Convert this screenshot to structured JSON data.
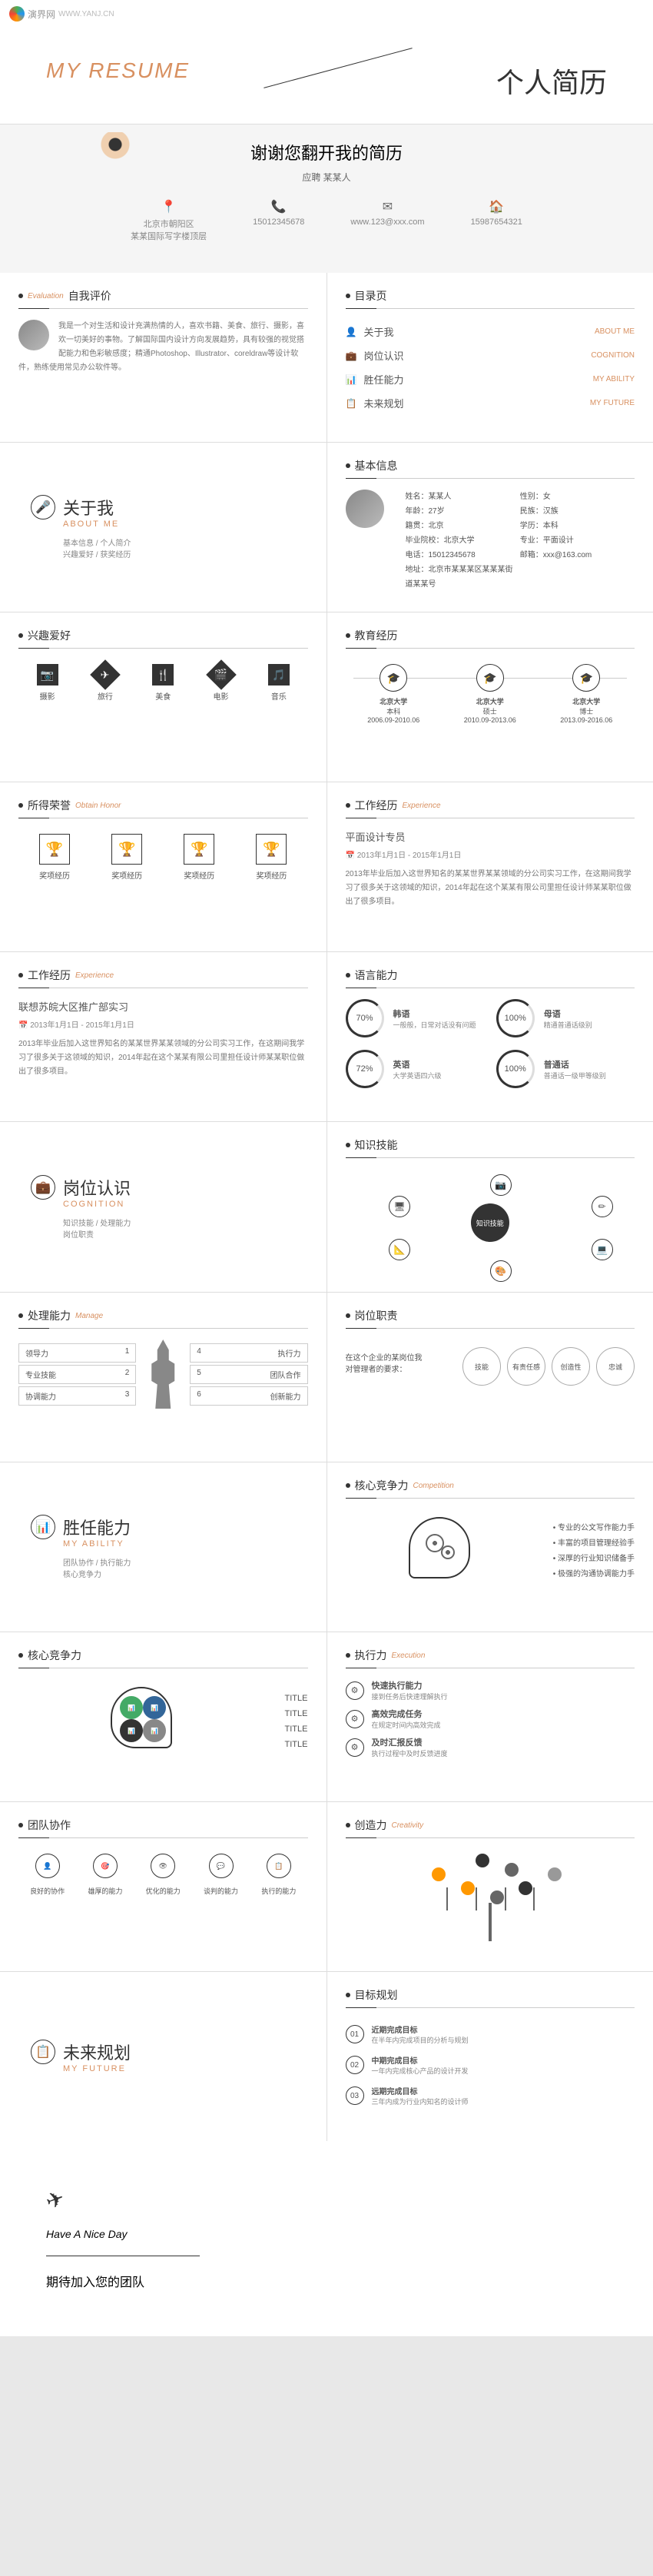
{
  "logo": "演界网",
  "hero": {
    "en": "MY RESUME",
    "cn": "个人简历"
  },
  "subhero": {
    "title": "谢谢您翻开我的简历",
    "sub": "应聘 某某人"
  },
  "contacts": [
    {
      "icon": "📍",
      "l1": "北京市朝阳区",
      "l2": "某某国际写字楼顶层"
    },
    {
      "icon": "📞",
      "l1": "15012345678",
      "l2": ""
    },
    {
      "icon": "✉",
      "l1": "www.123@xxx.com",
      "l2": ""
    },
    {
      "icon": "🏠",
      "l1": "15987654321",
      "l2": ""
    }
  ],
  "toc": {
    "title": "目录页",
    "items": [
      {
        "ico": "👤",
        "cn": "关于我",
        "en": "ABOUT ME"
      },
      {
        "ico": "💼",
        "cn": "岗位认识",
        "en": "COGNITION"
      },
      {
        "ico": "📊",
        "cn": "胜任能力",
        "en": "MY ABILITY"
      },
      {
        "ico": "📋",
        "cn": "未来规划",
        "en": "MY FUTURE"
      }
    ]
  },
  "selfeval": {
    "title": "自我评价",
    "en": "Evaluation",
    "text": "我是一个对生活和设计充满热情的人，喜欢书籍、美食、旅行、摄影，喜欢一切美好的事物。了解国际国内设计方向发展趋势，具有较强的视觉搭配能力和色彩敏感度；精通Photoshop、Illustrator、coreldraw等设计软件，熟练使用常见办公软件等。"
  },
  "sections": {
    "about": {
      "cn": "关于我",
      "en": "ABOUT ME",
      "ico": "🎤",
      "sub": "基本信息 / 个人简介\n兴趣爱好 / 获奖经历"
    },
    "cognition": {
      "cn": "岗位认识",
      "en": "COGNITION",
      "ico": "💼",
      "sub": "知识技能 / 处理能力\n岗位职责"
    },
    "ability": {
      "cn": "胜任能力",
      "en": "MY ABILITY",
      "ico": "📊",
      "sub": "团队协作 / 执行能力\n核心竞争力"
    },
    "future": {
      "cn": "未来规划",
      "en": "MY FUTURE",
      "ico": "📋",
      "sub": ""
    }
  },
  "basicinfo": {
    "title": "基本信息",
    "rows": [
      [
        "姓名：某某人",
        "性别：女"
      ],
      [
        "年龄：27岁",
        "民族：汉族"
      ],
      [
        "籍贯：北京",
        "学历：本科"
      ],
      [
        "毕业院校：北京大学",
        "专业：平面设计"
      ],
      [
        "电话：15012345678",
        "邮箱：xxx@163.com"
      ],
      [
        "地址：北京市某某某区某某某街道某某号",
        ""
      ]
    ]
  },
  "hobbies": {
    "title": "兴趣爱好",
    "items": [
      {
        "ico": "📷",
        "label": "摄影"
      },
      {
        "ico": "✈",
        "label": "旅行"
      },
      {
        "ico": "🍴",
        "label": "美食"
      },
      {
        "ico": "🎬",
        "label": "电影"
      },
      {
        "ico": "🎵",
        "label": "音乐"
      }
    ]
  },
  "education": {
    "title": "教育经历",
    "items": [
      {
        "ico": "🎓",
        "school": "北京大学",
        "degree": "本科",
        "time": "2006.09-2010.06"
      },
      {
        "ico": "🎓",
        "school": "北京大学",
        "degree": "硕士",
        "time": "2010.09-2013.06"
      },
      {
        "ico": "🎓",
        "school": "北京大学",
        "degree": "博士",
        "time": "2013.09-2016.06"
      }
    ]
  },
  "honors": {
    "title": "所得荣誉",
    "en": "Obtain Honor",
    "items": [
      {
        "ico": "🏆",
        "label": "奖项经历"
      },
      {
        "ico": "🏆",
        "label": "奖项经历"
      },
      {
        "ico": "🏆",
        "label": "奖项经历"
      },
      {
        "ico": "🏆",
        "label": "奖项经历"
      }
    ]
  },
  "work1": {
    "title": "工作经历",
    "en": "Experience",
    "job": "平面设计专员",
    "time": "📅 2013年1月1日 - 2015年1月1日",
    "desc": "2013年毕业后加入这世界知名的某某世界某某领域的分公司实习工作，在这期间我学习了很多关于这领域的知识，2014年起在这个某某有限公司里担任设计师某某职位做出了很多项目。"
  },
  "work2": {
    "title": "工作经历",
    "en": "Experience",
    "job": "联想苏皖大区推广部实习",
    "time": "📅 2013年1月1日 - 2015年1月1日",
    "desc": "2013年毕业后加入这世界知名的某某世界某某领域的分公司实习工作，在这期间我学习了很多关于这领域的知识，2014年起在这个某某有限公司里担任设计师某某职位做出了很多项目。"
  },
  "language": {
    "title": "语言能力",
    "items": [
      {
        "pct": "70%",
        "name": "韩语",
        "level": "一般般，日常对话没有问题"
      },
      {
        "pct": "100%",
        "name": "母语",
        "level": "精通普通话级别"
      },
      {
        "pct": "72%",
        "name": "英语",
        "level": "大学英语四六级"
      },
      {
        "pct": "100%",
        "name": "普通话",
        "level": "普通话一级甲等级别"
      }
    ]
  },
  "knowledge": {
    "title": "知识技能",
    "center": "知识技能",
    "nodes": [
      "📷",
      "✏",
      "💻",
      "🎨",
      "📐",
      "🖥"
    ]
  },
  "manage": {
    "title": "处理能力",
    "en": "Manage",
    "left": [
      "领导力",
      "专业技能",
      "协调能力"
    ],
    "right": [
      "执行力",
      "团队合作",
      "创新能力"
    ]
  },
  "responsibility": {
    "title": "岗位职责",
    "desc": "在这个企业的某岗位我\n对管理者的要求：",
    "items": [
      "技能",
      "有责任感",
      "创造性",
      "忠诚"
    ]
  },
  "core": {
    "title": "核心竞争力",
    "en": "Competition",
    "items": [
      "专业的公文写作能力手",
      "丰富的项目管理经验手",
      "深厚的行业知识储备手",
      "极强的沟通协调能力手"
    ]
  },
  "core2": {
    "title": "核心竞争力",
    "labels": [
      "TITLE",
      "TITLE",
      "TITLE",
      "TITLE"
    ]
  },
  "execution": {
    "title": "执行力",
    "en": "Execution",
    "items": [
      {
        "t": "快速执行能力",
        "d": "接到任务后快速理解执行"
      },
      {
        "t": "高效完成任务",
        "d": "在规定时间内高效完成"
      },
      {
        "t": "及时汇报反馈",
        "d": "执行过程中及时反馈进度"
      }
    ]
  },
  "teamwork": {
    "title": "团队协作",
    "items": [
      {
        "ico": "👤",
        "t": "良好的协作"
      },
      {
        "ico": "🎯",
        "t": "雄厚的能力"
      },
      {
        "ico": "👁",
        "t": "优化的能力"
      },
      {
        "ico": "💬",
        "t": "谈判的能力"
      },
      {
        "ico": "📋",
        "t": "执行的能力"
      }
    ]
  },
  "creativity": {
    "title": "创造力",
    "en": "Creativity",
    "leaves": [
      "#ff9800",
      "#333",
      "#666",
      "#999",
      "#ff9800",
      "#333",
      "#666"
    ]
  },
  "goals": {
    "title": "目标规划",
    "steps": [
      {
        "n": "01",
        "t": "近期完成目标",
        "d": "在半年内完成项目的分析与规划"
      },
      {
        "n": "02",
        "t": "中期完成目标",
        "d": "一年内完成核心产品的设计开发"
      },
      {
        "n": "03",
        "t": "远期完成目标",
        "d": "三年内成为行业内知名的设计师"
      }
    ]
  },
  "closing": {
    "en": "Have A Nice Day",
    "cn": "期待加入您的团队"
  }
}
